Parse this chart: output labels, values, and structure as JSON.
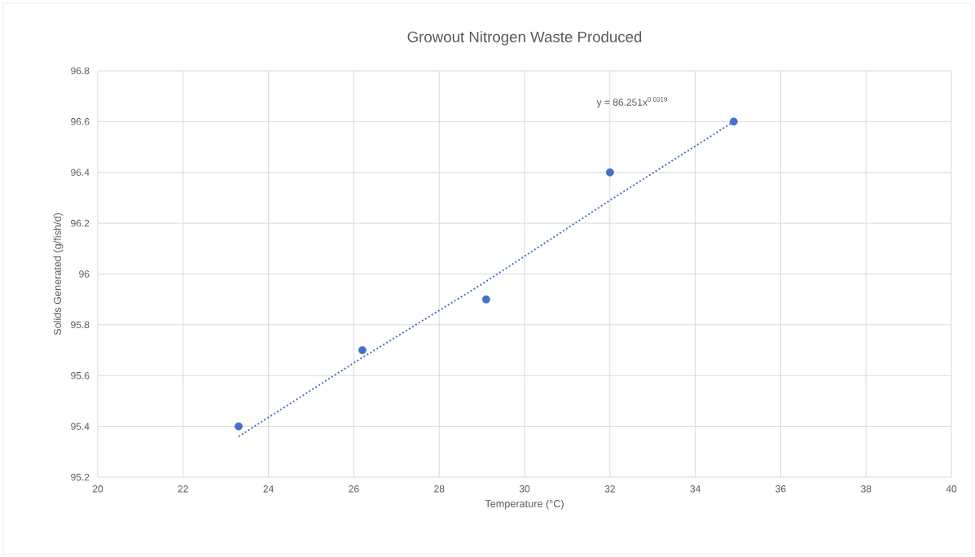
{
  "chart_data": {
    "type": "scatter",
    "title": "Growout Nitrogen Waste Produced",
    "xlabel": "Temperature (°C)",
    "ylabel": "Solids Generated (g/fish/d)",
    "xlim": [
      20,
      40
    ],
    "xticks": [
      20,
      22,
      24,
      26,
      28,
      30,
      32,
      34,
      36,
      38,
      40
    ],
    "ylim": [
      95.2,
      96.8
    ],
    "yticks": [
      95.2,
      95.4,
      95.6,
      95.8,
      96,
      96.2,
      96.4,
      96.6,
      96.8
    ],
    "grid": true,
    "series": [
      {
        "color": "#4472c4",
        "marker": "circle",
        "x": [
          23.3,
          26.2,
          29.1,
          32.0,
          34.9
        ],
        "values": [
          95.4,
          95.7,
          95.9,
          96.4,
          96.6
        ]
      },
      {
        "type": "line",
        "color": "#4472c4",
        "line_style": "dotted",
        "marker": "none",
        "x": [
          23.3,
          26.0,
          29.0,
          32.0,
          34.9
        ],
        "values": [
          95.36,
          95.65,
          95.96,
          96.29,
          96.6
        ]
      }
    ],
    "annotations": [
      "y = 86.251x$^{0.0319}$"
    ]
  }
}
